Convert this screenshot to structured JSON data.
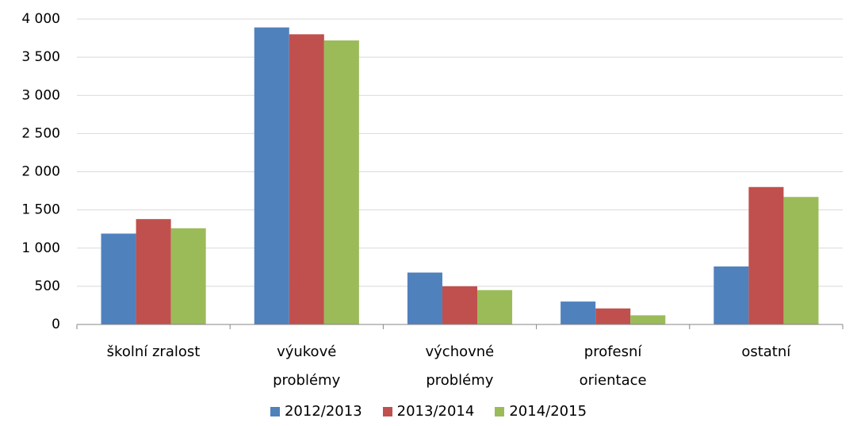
{
  "chart_data": {
    "type": "bar",
    "categories": [
      "školní zralost",
      "výukové\nproblémy",
      "výchovné\nproblémy",
      "profesní\norientace",
      "ostatní"
    ],
    "series": [
      {
        "name": "2012/2013",
        "color": "#4f81bd",
        "values": [
          1190,
          3890,
          680,
          300,
          760
        ]
      },
      {
        "name": "2013/2014",
        "color": "#c0504d",
        "values": [
          1380,
          3800,
          500,
          210,
          1800
        ]
      },
      {
        "name": "2014/2015",
        "color": "#9bbb59",
        "values": [
          1260,
          3720,
          450,
          120,
          1670
        ]
      }
    ],
    "ylim": [
      0,
      4000
    ],
    "yticks": [
      0,
      500,
      {
        "value": 1000,
        "label": "1 000"
      },
      {
        "value": 1500,
        "label": "1 500"
      },
      {
        "value": 2000,
        "label": "2 000"
      },
      {
        "value": 2500,
        "label": "2 500"
      },
      {
        "value": 3000,
        "label": "3 000"
      },
      {
        "value": 3500,
        "label": "3 500"
      },
      {
        "value": 4000,
        "label": "4 000"
      }
    ],
    "grid": true,
    "legend": "bottom"
  }
}
